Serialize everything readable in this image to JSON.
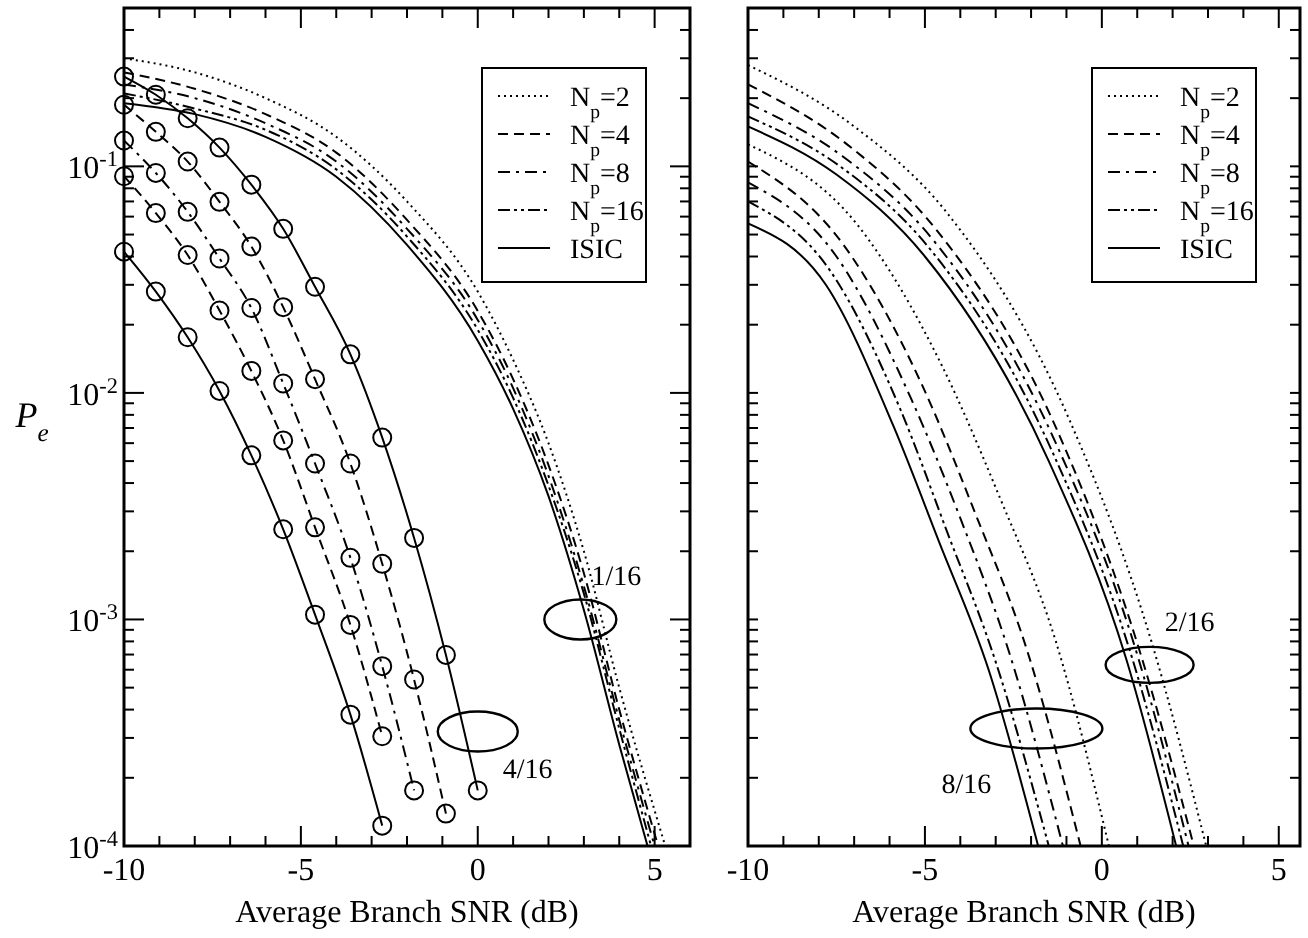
{
  "chart_data": [
    {
      "type": "line",
      "xlabel": "Average Branch SNR (dB)",
      "ylabel": "P$_{e}$",
      "log": "y",
      "legend": "top right",
      "grid": false,
      "xlim": [
        -10,
        6
      ],
      "ylim": [
        0.0001,
        0.5
      ],
      "xticks": [
        -10,
        {
          "value": -9,
          "label": null
        },
        {
          "value": -8,
          "label": null
        },
        {
          "value": -7,
          "label": null
        },
        {
          "value": -6,
          "label": null
        },
        -5,
        {
          "value": -4,
          "label": null
        },
        {
          "value": -3,
          "label": null
        },
        {
          "value": -2,
          "label": null
        },
        {
          "value": -1,
          "label": null
        },
        0,
        {
          "value": 1,
          "label": null
        },
        {
          "value": 2,
          "label": null
        },
        {
          "value": 3,
          "label": null
        },
        {
          "value": 4,
          "label": null
        },
        5
      ],
      "yticks": [
        {
          "value": 0.0001,
          "label": "10$^{-4}$"
        },
        {
          "value": 0.0002,
          "label": null
        },
        {
          "value": 0.0003,
          "label": null
        },
        {
          "value": 0.0004,
          "label": null
        },
        {
          "value": 0.0005,
          "label": null
        },
        {
          "value": 0.0006,
          "label": null
        },
        {
          "value": 0.0007,
          "label": null
        },
        {
          "value": 0.0008,
          "label": null
        },
        {
          "value": 0.0009,
          "label": null
        },
        {
          "value": 0.001,
          "label": "10$^{-3}$"
        },
        {
          "value": 0.002,
          "label": null
        },
        {
          "value": 0.003,
          "label": null
        },
        {
          "value": 0.004,
          "label": null
        },
        {
          "value": 0.005,
          "label": null
        },
        {
          "value": 0.006,
          "label": null
        },
        {
          "value": 0.007,
          "label": null
        },
        {
          "value": 0.008,
          "label": null
        },
        {
          "value": 0.009,
          "label": null
        },
        {
          "value": 0.01,
          "label": "10$^{-2}$"
        },
        {
          "value": 0.02,
          "label": null
        },
        {
          "value": 0.03,
          "label": null
        },
        {
          "value": 0.04,
          "label": null
        },
        {
          "value": 0.05,
          "label": null
        },
        {
          "value": 0.06,
          "label": null
        },
        {
          "value": 0.07,
          "label": null
        },
        {
          "value": 0.08,
          "label": null
        },
        {
          "value": 0.09,
          "label": null
        },
        {
          "value": 0.1,
          "label": "10$^{-1}$"
        },
        {
          "value": 0.2,
          "label": null
        },
        {
          "value": 0.3,
          "label": null
        },
        {
          "value": 0.4,
          "label": null
        },
        {
          "value": 0.5,
          "label": null
        }
      ],
      "annotations": [
        {
          "text": "1/16",
          "x": 2.9,
          "y": 0.001
        },
        {
          "text": "4/16",
          "x": 0,
          "y": 0.00032
        }
      ],
      "series": [
        {
          "name": "N$_{p}$=2",
          "color": "#000000",
          "line_style": "dotted",
          "x": [
            -10,
            -8,
            -6,
            -4,
            -2,
            0,
            1,
            2,
            3,
            4,
            5.3
          ],
          "values": [
            0.3,
            0.26,
            0.2,
            0.135,
            0.07,
            0.028,
            0.014,
            0.006,
            0.002,
            0.0005,
            0.0001
          ]
        },
        {
          "name": "N$_{p}$=4",
          "color": "#000000",
          "line_style": "dashed",
          "x": [
            -10,
            -8,
            -6,
            -4,
            -2,
            0,
            1,
            2,
            3,
            4,
            5.1
          ],
          "values": [
            0.26,
            0.22,
            0.17,
            0.115,
            0.058,
            0.023,
            0.0115,
            0.0048,
            0.0016,
            0.0004,
            0.0001
          ]
        },
        {
          "name": "N$_{p}$=8",
          "color": "#000000",
          "line_style": "dashdot",
          "x": [
            -10,
            -8,
            -6,
            -4,
            -2,
            0,
            1,
            2,
            3,
            4,
            5
          ],
          "values": [
            0.23,
            0.2,
            0.155,
            0.105,
            0.053,
            0.021,
            0.0105,
            0.0043,
            0.0014,
            0.00036,
            0.0001
          ]
        },
        {
          "name": "N$_{p}$=16",
          "color": "#000000",
          "line_style": "dashdotdot",
          "x": [
            -10,
            -8,
            -6,
            -4,
            -2,
            0,
            1,
            2,
            3,
            4,
            4.9
          ],
          "values": [
            0.21,
            0.18,
            0.145,
            0.097,
            0.049,
            0.019,
            0.0095,
            0.0039,
            0.0013,
            0.00033,
            0.0001
          ]
        },
        {
          "name": "ISIC",
          "color": "#000000",
          "line_style": "solid",
          "x": [
            -10,
            -8,
            -6,
            -4,
            -2,
            0,
            1,
            2,
            3,
            4,
            4.8
          ],
          "values": [
            0.19,
            0.17,
            0.135,
            0.09,
            0.045,
            0.017,
            0.0085,
            0.0035,
            0.0011,
            0.00028,
            0.0001
          ]
        },
        {
          "color": "#000000",
          "line_style": "solid",
          "marker": "circle",
          "x": [
            -10,
            -9.1,
            -8.2,
            -7.3,
            -6.4,
            -5.5,
            -4.6,
            -3.6,
            -2.7,
            -1.8,
            -0.9,
            0
          ],
          "values": [
            0.249,
            0.207,
            0.163,
            0.121,
            0.083,
            0.053,
            0.0294,
            0.0148,
            0.00635,
            0.00229,
            0.000697,
            0.000176
          ]
        },
        {
          "color": "#000000",
          "line_style": "dashed",
          "marker": "circle",
          "x": [
            -10,
            -9.1,
            -8.2,
            -7.3,
            -6.4,
            -5.5,
            -4.6,
            -3.6,
            -2.7,
            -1.8,
            -0.9
          ],
          "values": [
            0.187,
            0.142,
            0.105,
            0.0697,
            0.0443,
            0.0239,
            0.0115,
            0.00488,
            0.00176,
            0.000543,
            0.000139
          ]
        },
        {
          "color": "#000000",
          "line_style": "dashdot",
          "marker": "circle",
          "x": [
            -10,
            -9.1,
            -8.2,
            -7.3,
            -6.4,
            -5.5,
            -4.6,
            -3.6,
            -2.7,
            -1.8
          ],
          "values": [
            0.13,
            0.0935,
            0.063,
            0.0392,
            0.0237,
            0.011,
            0.00488,
            0.00187,
            0.000622,
            0.000176
          ]
        },
        {
          "color": "#000000",
          "line_style": "dashed",
          "marker": "circle",
          "x": [
            -10,
            -9.1,
            -8.2,
            -7.3,
            -6.4,
            -5.5,
            -4.6,
            -3.6,
            -2.7
          ],
          "values": [
            0.0904,
            0.0622,
            0.0406,
            0.0231,
            0.0125,
            0.00617,
            0.00255,
            0.000946,
            0.000305
          ]
        },
        {
          "color": "#000000",
          "line_style": "solid",
          "marker": "circle",
          "x": [
            -10,
            -9.1,
            -8.2,
            -7.3,
            -6.4,
            -5.5,
            -4.6,
            -3.6,
            -2.7
          ],
          "values": [
            0.042,
            0.028,
            0.0176,
            0.0102,
            0.0053,
            0.0025,
            0.00105,
            0.00038,
            0.000123
          ]
        }
      ]
    },
    {
      "type": "line",
      "xlabel": "Average Branch SNR (dB)",
      "log": "y",
      "legend": "top right",
      "grid": false,
      "tick_labels": "x",
      "xlim": [
        -10,
        5.6
      ],
      "ylim": [
        0.0001,
        0.5
      ],
      "xticks": [
        -10,
        {
          "value": -9,
          "label": null
        },
        {
          "value": -8,
          "label": null
        },
        {
          "value": -7,
          "label": null
        },
        {
          "value": -6,
          "label": null
        },
        -5,
        {
          "value": -4,
          "label": null
        },
        {
          "value": -3,
          "label": null
        },
        {
          "value": -2,
          "label": null
        },
        {
          "value": -1,
          "label": null
        },
        0,
        {
          "value": 1,
          "label": null
        },
        {
          "value": 2,
          "label": null
        },
        {
          "value": 3,
          "label": null
        },
        {
          "value": 4,
          "label": null
        },
        5
      ],
      "yticks": [
        {
          "value": 0.0001,
          "label": null
        },
        {
          "value": 0.0002,
          "label": null
        },
        {
          "value": 0.0003,
          "label": null
        },
        {
          "value": 0.0004,
          "label": null
        },
        {
          "value": 0.0005,
          "label": null
        },
        {
          "value": 0.0006,
          "label": null
        },
        {
          "value": 0.0007,
          "label": null
        },
        {
          "value": 0.0008,
          "label": null
        },
        {
          "value": 0.0009,
          "label": null
        },
        {
          "value": 0.001,
          "label": null
        },
        {
          "value": 0.002,
          "label": null
        },
        {
          "value": 0.003,
          "label": null
        },
        {
          "value": 0.004,
          "label": null
        },
        {
          "value": 0.005,
          "label": null
        },
        {
          "value": 0.006,
          "label": null
        },
        {
          "value": 0.007,
          "label": null
        },
        {
          "value": 0.008,
          "label": null
        },
        {
          "value": 0.009,
          "label": null
        },
        {
          "value": 0.01,
          "label": null
        },
        {
          "value": 0.02,
          "label": null
        },
        {
          "value": 0.03,
          "label": null
        },
        {
          "value": 0.04,
          "label": null
        },
        {
          "value": 0.05,
          "label": null
        },
        {
          "value": 0.06,
          "label": null
        },
        {
          "value": 0.07,
          "label": null
        },
        {
          "value": 0.08,
          "label": null
        },
        {
          "value": 0.09,
          "label": null
        },
        {
          "value": 0.1,
          "label": null
        },
        {
          "value": 0.2,
          "label": null
        },
        {
          "value": 0.3,
          "label": null
        },
        {
          "value": 0.4,
          "label": null
        },
        {
          "value": 0.5,
          "label": null
        }
      ],
      "annotations": [
        {
          "text": "2/16",
          "x": 1.35,
          "y": 0.00063
        },
        {
          "text": "8/16",
          "x": -1.85,
          "y": 0.00033
        }
      ],
      "series": [
        {
          "name": "N$_{p}$=2",
          "color": "#000000",
          "line_style": "dotted",
          "x": [
            -10,
            -7,
            -4.4,
            -0.9,
            1.4,
            2.95
          ],
          "values": [
            0.28,
            0.15,
            0.063,
            0.0075,
            0.0008,
            0.0001
          ]
        },
        {
          "name": "N$_{p}$=4",
          "color": "#000000",
          "line_style": "dashed",
          "x": [
            -10,
            -7.2,
            -4.7,
            -1.2,
            1.1,
            2.6
          ],
          "values": [
            0.23,
            0.125,
            0.053,
            0.0065,
            0.0007,
            0.0001
          ]
        },
        {
          "name": "N$_{p}$=8",
          "color": "#000000",
          "line_style": "dashdot",
          "x": [
            -10,
            -7.3,
            -4.8,
            -1.3,
            1,
            2.45
          ],
          "values": [
            0.19,
            0.11,
            0.048,
            0.006,
            0.0007,
            0.0001
          ]
        },
        {
          "name": "N$_{p}$=16",
          "color": "#000000",
          "line_style": "dashdotdot",
          "x": [
            -10,
            -7.4,
            -4.9,
            -1.4,
            0.85,
            2.3
          ],
          "values": [
            0.166,
            0.1,
            0.044,
            0.0055,
            0.00068,
            0.0001
          ]
        },
        {
          "name": "ISIC",
          "color": "#000000",
          "line_style": "solid",
          "x": [
            -10,
            -7.5,
            -5,
            -1.5,
            0.7,
            2.1
          ],
          "values": [
            0.15,
            0.092,
            0.04,
            0.005,
            0.00066,
            0.0001
          ]
        },
        {
          "color": "#000000",
          "line_style": "dotted",
          "x": [
            -10,
            -6.9,
            -4.5,
            -2.9,
            -1.3,
            0.2
          ],
          "values": [
            0.125,
            0.055,
            0.013,
            0.0035,
            0.0008,
            0.0001
          ]
        },
        {
          "color": "#000000",
          "line_style": "dashed",
          "x": [
            -10,
            -7.3,
            -5.1,
            -3.6,
            -2.1,
            -0.6
          ],
          "values": [
            0.105,
            0.045,
            0.011,
            0.003,
            0.00072,
            0.0001
          ]
        },
        {
          "color": "#000000",
          "line_style": "dashdot",
          "x": [
            -10,
            -7.5,
            -5.4,
            -4,
            -2.6,
            -1.1
          ],
          "values": [
            0.085,
            0.04,
            0.0095,
            0.0028,
            0.0007,
            0.0001
          ]
        },
        {
          "color": "#000000",
          "line_style": "dashdotdot",
          "x": [
            -10,
            -7.7,
            -5.7,
            -4.4,
            -3,
            -1.5
          ],
          "values": [
            0.07,
            0.035,
            0.0085,
            0.0025,
            0.00065,
            0.0001
          ]
        },
        {
          "color": "#000000",
          "line_style": "solid",
          "x": [
            -10,
            -7.8,
            -5.9,
            -4.6,
            -3.2,
            -1.8
          ],
          "values": [
            0.056,
            0.03,
            0.0072,
            0.0022,
            0.0006,
            0.0001
          ]
        }
      ]
    }
  ]
}
